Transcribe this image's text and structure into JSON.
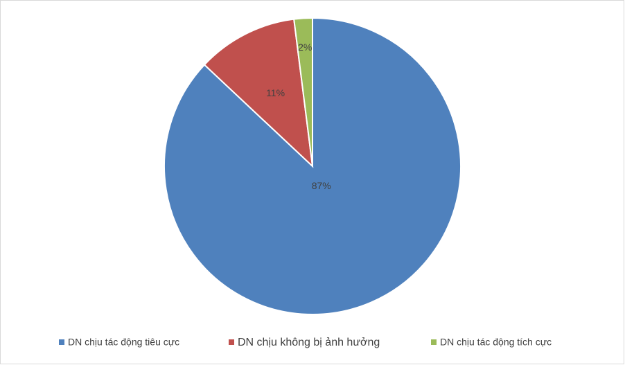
{
  "chart_data": {
    "type": "pie",
    "categories": [
      "DN chịu tác động tiêu cực",
      "DN chịu không bị ảnh hưởng",
      "DN chịu tác động tích cực"
    ],
    "values": [
      87,
      11,
      2
    ],
    "value_labels": [
      "87%",
      "11%",
      "2%"
    ],
    "colors": [
      "#4f81bd",
      "#c0504d",
      "#9bbb59"
    ],
    "legend": "bottom"
  }
}
